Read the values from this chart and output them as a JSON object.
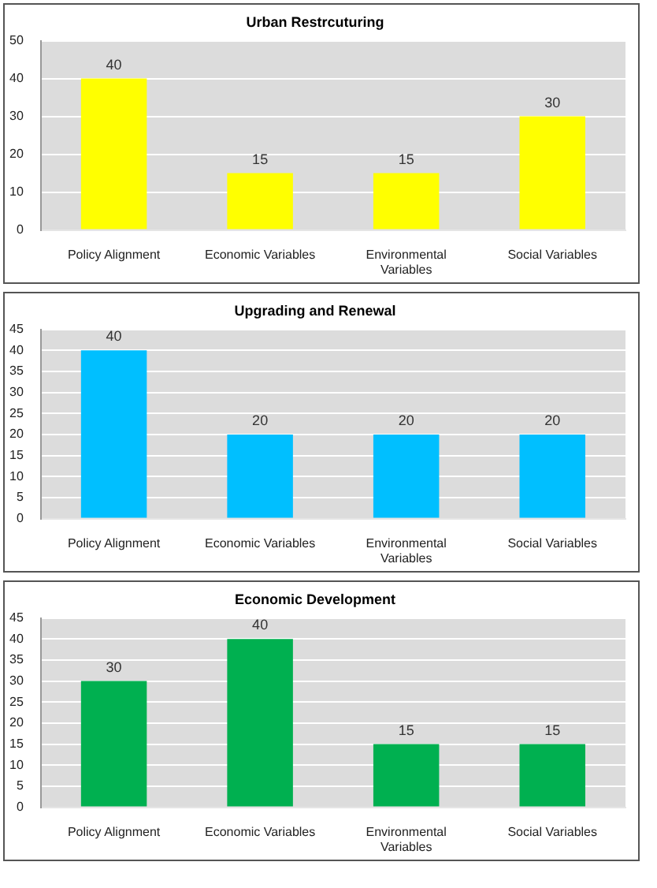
{
  "chart_data": [
    {
      "type": "bar",
      "title": "Urban Restrcuturing",
      "categories": [
        "Policy Alignment",
        "Economic Variables",
        "Environmental Variables",
        "Social Variables"
      ],
      "values": [
        40,
        15,
        15,
        30
      ],
      "color": "#ffff00",
      "ylim": [
        0,
        50
      ],
      "yticks": [
        0,
        10,
        20,
        30,
        40,
        50
      ],
      "grid": "y",
      "data_labels": true,
      "legend": false
    },
    {
      "type": "bar",
      "title": "Upgrading and Renewal",
      "categories": [
        "Policy Alignment",
        "Economic Variables",
        "Environmental Variables",
        "Social Variables"
      ],
      "values": [
        40,
        20,
        20,
        20
      ],
      "color": "#00bfff",
      "ylim": [
        0,
        45
      ],
      "yticks": [
        0,
        5,
        10,
        15,
        20,
        25,
        30,
        35,
        40,
        45
      ],
      "grid": "y",
      "data_labels": true,
      "legend": false
    },
    {
      "type": "bar",
      "title": "Economic Development",
      "categories": [
        "Policy Alignment",
        "Economic Variables",
        "Environmental Variables",
        "Social Variables"
      ],
      "values": [
        30,
        40,
        15,
        15
      ],
      "color": "#00b050",
      "ylim": [
        0,
        45
      ],
      "yticks": [
        0,
        5,
        10,
        15,
        20,
        25,
        30,
        35,
        40,
        45
      ],
      "grid": "y",
      "data_labels": true,
      "legend": false
    }
  ]
}
